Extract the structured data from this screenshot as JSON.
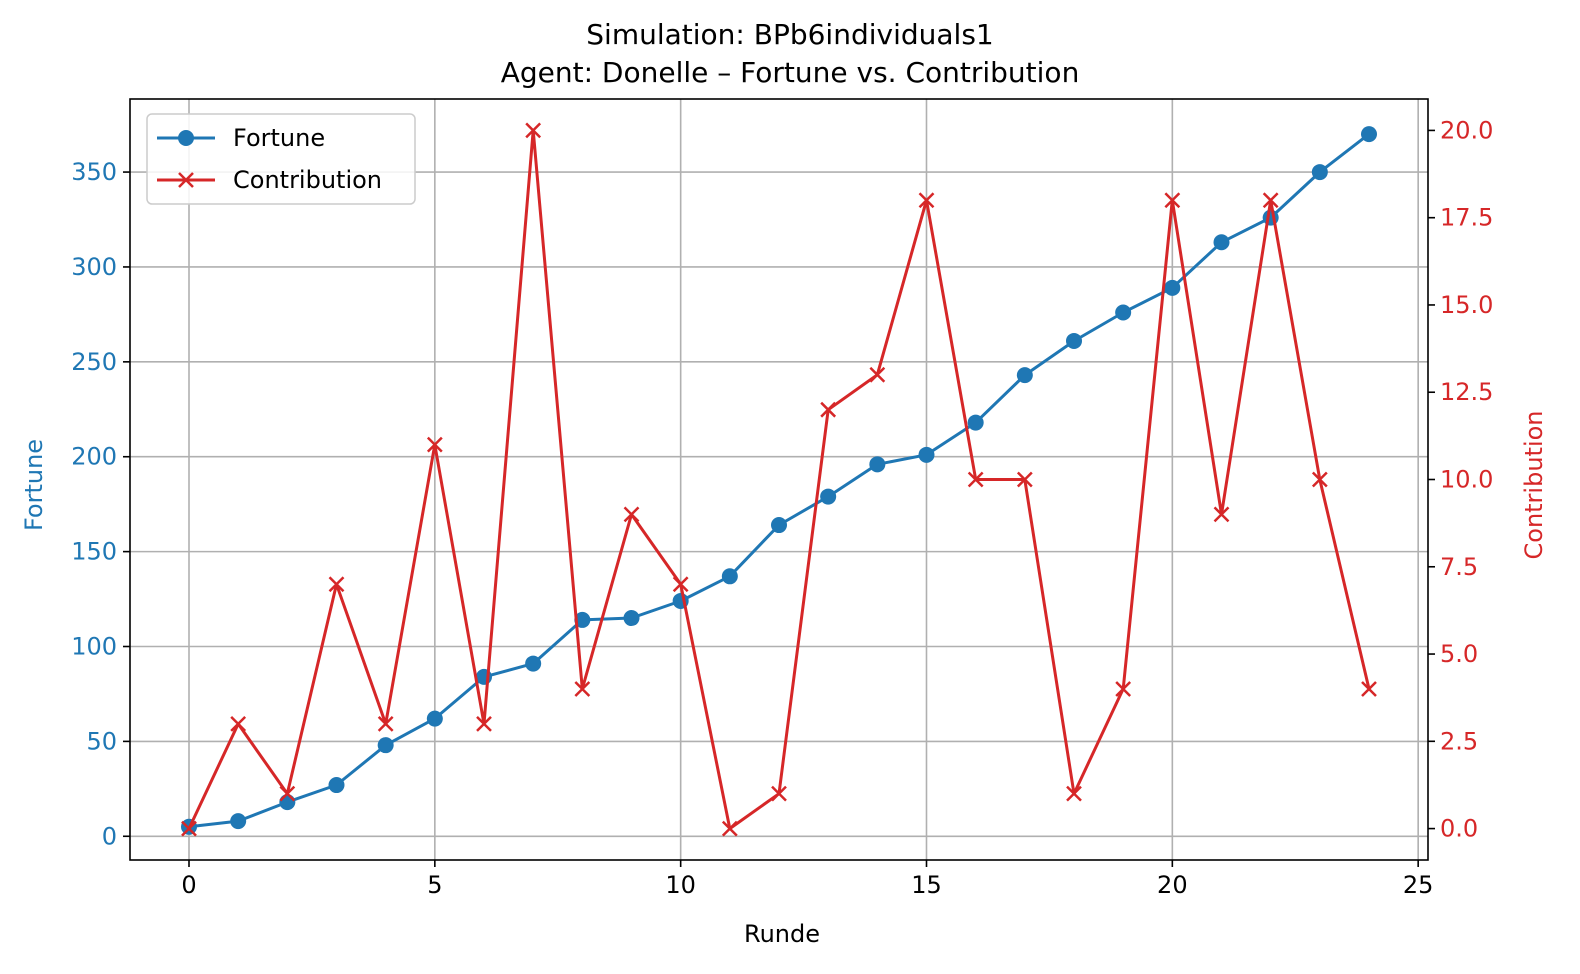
{
  "chart_data": {
    "type": "line",
    "title": "Simulation: BPb6individuals1",
    "subtitle": "Agent: Donelle – Fortune vs. Contribution",
    "xlabel": "Runde",
    "ylabel_left": "Fortune",
    "ylabel_right": "Contribution",
    "xlim": [
      -1.2,
      25.2
    ],
    "ylim_left": [
      -12.5,
      388.5
    ],
    "ylim_right": [
      -0.9,
      20.9
    ],
    "x_ticks": [
      0,
      5,
      10,
      15,
      20,
      25
    ],
    "y_left_ticks": [
      0,
      50,
      100,
      150,
      200,
      250,
      300,
      350
    ],
    "y_right_ticks": [
      "0.0",
      "2.5",
      "5.0",
      "7.5",
      "10.0",
      "12.5",
      "15.0",
      "17.5",
      "20.0"
    ],
    "grid": true,
    "legend_position": "upper-left",
    "x": [
      0,
      1,
      2,
      3,
      4,
      5,
      6,
      7,
      8,
      9,
      10,
      11,
      12,
      13,
      14,
      15,
      16,
      17,
      18,
      19,
      20,
      21,
      22,
      23,
      24
    ],
    "series": [
      {
        "name": "Fortune",
        "axis": "left",
        "color": "#1f77b4",
        "marker": "circle",
        "values": [
          5,
          8,
          18,
          27,
          48,
          62,
          84,
          91,
          114,
          115,
          124,
          137,
          164,
          179,
          196,
          201,
          218,
          243,
          261,
          276,
          289,
          313,
          326,
          350,
          370
        ]
      },
      {
        "name": "Contribution",
        "axis": "right",
        "color": "#d62728",
        "marker": "x",
        "values": [
          0,
          3,
          1,
          7,
          3,
          11,
          3,
          20,
          4,
          9,
          7,
          0,
          1,
          12,
          13,
          18,
          10,
          10,
          1,
          4,
          18,
          9,
          18,
          10,
          4
        ]
      }
    ]
  }
}
